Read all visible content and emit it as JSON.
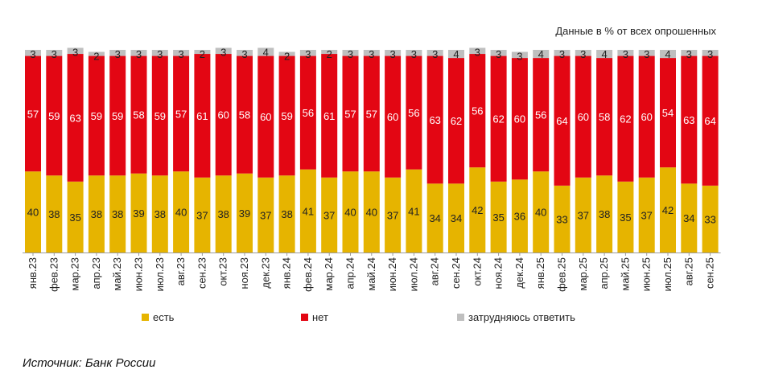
{
  "note": "Данные в % от всех опрошенных",
  "source": "Источник: Банк России",
  "colors": {
    "yes": "#e6b400",
    "no": "#e30613",
    "dk": "#bfbfbf"
  },
  "chart_data": {
    "type": "bar",
    "stacked": true,
    "categories": [
      "янв.23",
      "фев.23",
      "мар.23",
      "апр.23",
      "май.23",
      "июн.23",
      "июл.23",
      "авг.23",
      "сен.23",
      "окт.23",
      "ноя.23",
      "дек.23",
      "янв.24",
      "фев.24",
      "мар.24",
      "апр.24",
      "май.24",
      "июн.24",
      "июл.24",
      "авг.24",
      "сен.24",
      "окт.24",
      "ноя.24",
      "дек.24",
      "янв.25",
      "фев.25",
      "мар.25",
      "апр.25",
      "май.25",
      "июн.25",
      "июл.25",
      "авг.25",
      "сен.25"
    ],
    "series": [
      {
        "name": "есть",
        "values": [
          40,
          38,
          35,
          38,
          38,
          39,
          38,
          40,
          37,
          38,
          39,
          37,
          38,
          41,
          37,
          40,
          40,
          37,
          41,
          34,
          34,
          42,
          35,
          36,
          40,
          33,
          37,
          38,
          35,
          37,
          42,
          34,
          33
        ]
      },
      {
        "name": "нет",
        "values": [
          57,
          59,
          63,
          59,
          59,
          58,
          59,
          57,
          61,
          60,
          58,
          60,
          59,
          56,
          61,
          57,
          57,
          60,
          56,
          63,
          62,
          56,
          62,
          60,
          56,
          64,
          60,
          58,
          62,
          60,
          54,
          63,
          64
        ]
      },
      {
        "name": "затрудняюсь ответить",
        "values": [
          3,
          3,
          3,
          2,
          3,
          3,
          3,
          3,
          2,
          3,
          3,
          4,
          2,
          3,
          2,
          3,
          3,
          3,
          3,
          3,
          4,
          3,
          3,
          3,
          4,
          3,
          3,
          4,
          3,
          3,
          4,
          3,
          3
        ]
      }
    ],
    "ylim": [
      0,
      100
    ],
    "legend": {
      "position": "bottom",
      "items": [
        "есть",
        "нет",
        "затрудняюсь ответить"
      ]
    }
  }
}
